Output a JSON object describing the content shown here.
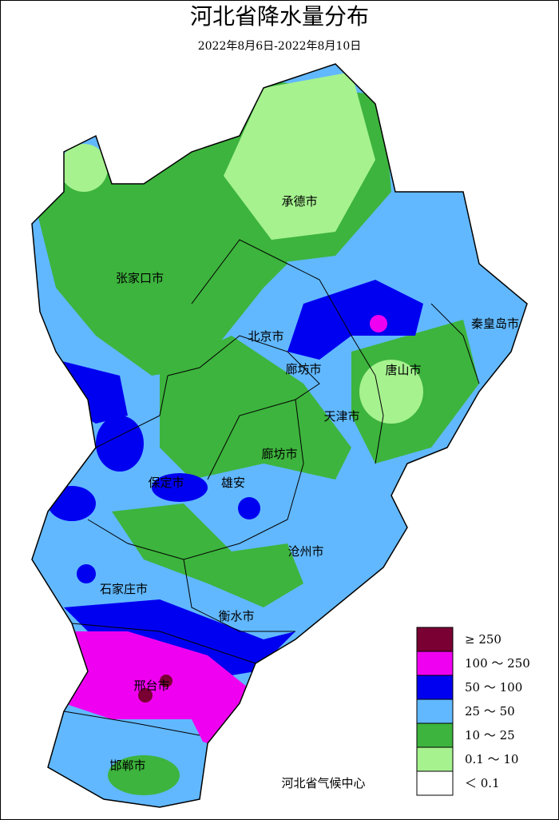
{
  "header": {
    "title": "河北省降水量分布",
    "subtitle": "2022年8月6日-2022年8月10日"
  },
  "map": {
    "labels": [
      "承德市",
      "张家口市",
      "秦皇岛市",
      "北京市",
      "廊坊市",
      "唐山市",
      "天津市",
      "廊坊市",
      "保定市",
      "雄安",
      "沧州市",
      "石家庄市",
      "衡水市",
      "邢台市",
      "邯郸市"
    ]
  },
  "legend": {
    "items": [
      {
        "label": "≥ 250",
        "color": "#7a0034"
      },
      {
        "label": "100 ～ 250",
        "color": "#f000f0"
      },
      {
        "label": "50 ～ 100",
        "color": "#0000f0"
      },
      {
        "label": "25 ～ 50",
        "color": "#61b8ff"
      },
      {
        "label": "10 ～ 25",
        "color": "#3db43d"
      },
      {
        "label": "0.1 ～ 10",
        "color": "#a6f28f"
      },
      {
        "label": "＜ 0.1",
        "color": "#ffffff"
      }
    ]
  },
  "credit": "河北省气候中心"
}
